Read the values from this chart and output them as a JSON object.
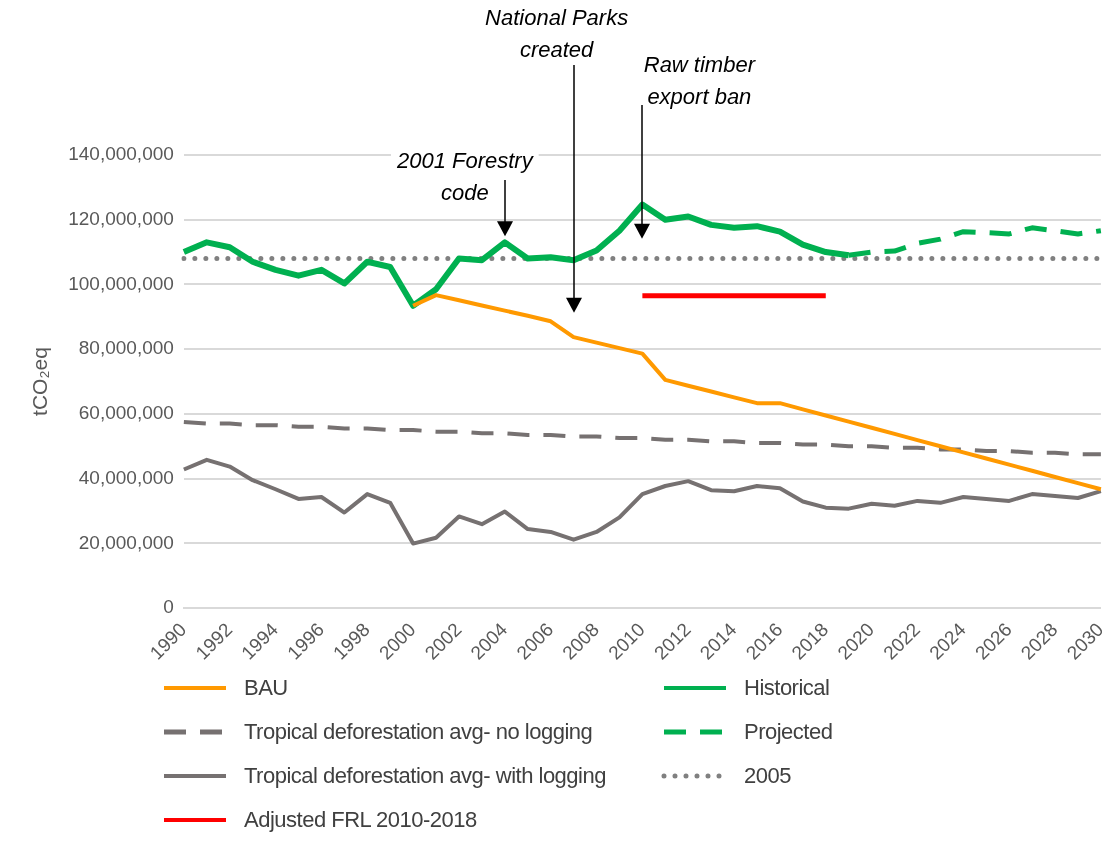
{
  "chart_data": {
    "type": "line",
    "ylabel": "tCO₂eq",
    "categories": [
      "1990",
      null,
      "1992",
      null,
      "1994",
      null,
      "1996",
      null,
      "1998",
      null,
      "2000",
      null,
      "2002",
      null,
      "2004",
      null,
      "2006",
      null,
      "2008",
      null,
      "2010",
      null,
      "2012",
      null,
      "2014",
      null,
      "2016",
      null,
      "2018",
      null,
      "2020",
      null,
      "2022",
      null,
      "2024",
      null,
      "2026",
      null,
      "2028",
      null,
      "2030"
    ],
    "series": [
      {
        "name": "BAU",
        "color": "#ff9900",
        "line_style": "solid",
        "values": [
          null,
          null,
          null,
          null,
          null,
          null,
          null,
          null,
          null,
          null,
          93400000,
          96700000,
          95100000,
          93500000,
          91900000,
          90300000,
          88600000,
          83700000,
          82000000,
          80300000,
          78600000,
          70500000,
          68700000,
          66900000,
          65100000,
          63300000,
          63300000,
          61400000,
          59500000,
          57600000,
          55700000,
          53800000,
          51900000,
          50000000,
          48100000,
          46200000,
          44300000,
          42400000,
          40500000,
          38600000,
          36700000
        ]
      },
      {
        "name": "Historical",
        "color": "#00b050",
        "line_style": "solid",
        "values": [
          110000000,
          113000000,
          111500000,
          107000000,
          104500000,
          102700000,
          104500000,
          100300000,
          107000000,
          105400000,
          93400000,
          98500000,
          108000000,
          107500000,
          113000000,
          108000000,
          108400000,
          107500000,
          110500000,
          116600000,
          124700000,
          120000000,
          121000000,
          118400000,
          117500000,
          118000000,
          116300000,
          112300000,
          110000000,
          109000000,
          null,
          null,
          null,
          null,
          null,
          null,
          null,
          null,
          null,
          null,
          null
        ]
      },
      {
        "name": "Tropical deforestation avg- no logging",
        "color": "#767171",
        "line_style": "dashed",
        "values": [
          57500000,
          57000000,
          57000000,
          56500000,
          56500000,
          56000000,
          56000000,
          55500000,
          55500000,
          55000000,
          55000000,
          54500000,
          54500000,
          54000000,
          54000000,
          53500000,
          53500000,
          53000000,
          53000000,
          52500000,
          52500000,
          52000000,
          52000000,
          51500000,
          51500000,
          51000000,
          51000000,
          50500000,
          50500000,
          50000000,
          50000000,
          49500000,
          49500000,
          49000000,
          49000000,
          48500000,
          48500000,
          48000000,
          48000000,
          47500000,
          47500000
        ]
      },
      {
        "name": "Projected",
        "color": "#00b050",
        "line_style": "dashed",
        "values": [
          null,
          null,
          null,
          null,
          null,
          null,
          null,
          null,
          null,
          null,
          null,
          null,
          null,
          null,
          null,
          null,
          null,
          null,
          null,
          null,
          null,
          null,
          null,
          null,
          null,
          null,
          null,
          null,
          null,
          109000000,
          110000000,
          110300000,
          112700000,
          114000000,
          116300000,
          116000000,
          115600000,
          117500000,
          116600000,
          115600000,
          116600000
        ]
      },
      {
        "name": "Tropical deforestation avg- with logging",
        "color": "#767171",
        "line_style": "solid",
        "values": [
          42800000,
          45800000,
          43700000,
          39500000,
          36700000,
          33700000,
          34300000,
          29500000,
          35200000,
          32500000,
          19900000,
          21700000,
          28300000,
          25900000,
          29800000,
          24400000,
          23500000,
          21100000,
          23500000,
          28000000,
          35200000,
          37700000,
          39200000,
          36400000,
          36100000,
          37700000,
          37000000,
          32900000,
          31000000,
          30700000,
          32200000,
          31600000,
          33100000,
          32500000,
          34300000,
          33700000,
          33100000,
          35200000,
          34600000,
          34000000,
          36100000
        ]
      },
      {
        "name": "2005",
        "color": "#808080",
        "line_style": "dotted",
        "values": [
          108000000,
          108000000,
          108000000,
          108000000,
          108000000,
          108000000,
          108000000,
          108000000,
          108000000,
          108000000,
          108000000,
          108000000,
          108000000,
          108000000,
          108000000,
          108000000,
          108000000,
          108000000,
          108000000,
          108000000,
          108000000,
          108000000,
          108000000,
          108000000,
          108000000,
          108000000,
          108000000,
          108000000,
          108000000,
          108000000,
          108000000,
          108000000,
          108000000,
          108000000,
          108000000,
          108000000,
          108000000,
          108000000,
          108000000,
          108000000,
          108000000
        ]
      },
      {
        "name": "Adjusted FRL 2010-2018",
        "color": "#ff0000",
        "line_style": "solid",
        "values": [
          null,
          null,
          null,
          null,
          null,
          null,
          null,
          null,
          null,
          null,
          null,
          null,
          null,
          null,
          null,
          null,
          null,
          null,
          null,
          null,
          96500000,
          96500000,
          96500000,
          96500000,
          96500000,
          96500000,
          96500000,
          96500000,
          96500000,
          null,
          null,
          null,
          null,
          null,
          null,
          null,
          null,
          null,
          null,
          null,
          null
        ]
      }
    ],
    "ylim": [
      0,
      140000000
    ],
    "yticks": [
      {
        "value": 0,
        "label": "0"
      },
      {
        "value": 20000000,
        "label": "20,000,000"
      },
      {
        "value": 40000000,
        "label": "40,000,000"
      },
      {
        "value": 60000000,
        "label": "60,000,000"
      },
      {
        "value": 80000000,
        "label": "80,000,000"
      },
      {
        "value": 100000000,
        "label": "100,000,000"
      },
      {
        "value": 120000000,
        "label": "120,000,000"
      },
      {
        "value": 140000000,
        "label": "140,000,000"
      }
    ],
    "grid": "y",
    "legend": "bottom",
    "marker": "none",
    "annotations": [
      {
        "text": "2001 Forestry code",
        "x": "2004",
        "y": 113000000
      },
      "National Parks created",
      "Raw timber export ban"
    ]
  }
}
